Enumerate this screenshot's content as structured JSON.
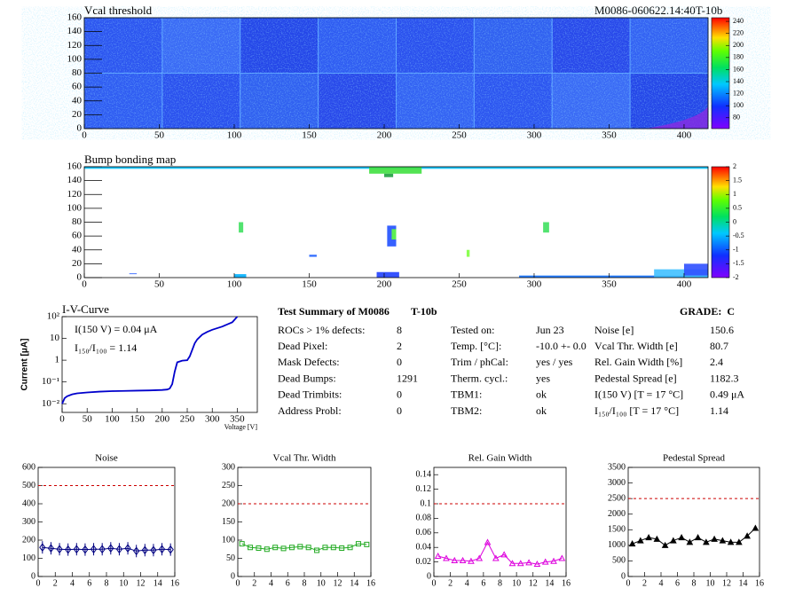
{
  "header": {
    "module_id": "M0086-060622.14:40T-10b"
  },
  "chart_data": [
    {
      "type": "heatmap",
      "title": "Vcal threshold",
      "xlim": [
        0,
        416
      ],
      "xticks": [
        0,
        50,
        100,
        150,
        200,
        250,
        300,
        350,
        400
      ],
      "ylim": [
        0,
        160
      ],
      "yticks": [
        0,
        20,
        40,
        60,
        80,
        100,
        120,
        140,
        160
      ],
      "zlim": [
        62,
        246
      ],
      "zticks": [
        80,
        100,
        120,
        140,
        160,
        180,
        200,
        220,
        240
      ]
    },
    {
      "type": "heatmap",
      "title": "Bump bonding map",
      "xlim": [
        0,
        416
      ],
      "xticks": [
        0,
        50,
        100,
        150,
        200,
        250,
        300,
        350,
        400
      ],
      "ylim": [
        0,
        160
      ],
      "yticks": [
        0,
        20,
        40,
        60,
        80,
        100,
        120,
        140,
        160
      ],
      "zlim": [
        -2,
        2
      ],
      "zticks": [
        -2,
        -1.5,
        -1,
        -0.5,
        0,
        0.5,
        1,
        1.5,
        2
      ]
    },
    {
      "type": "line",
      "title": "I-V-Curve",
      "xlabel": "Voltage [V]",
      "ylabel": "Current [μA]",
      "log_y": true,
      "color": "#0000cc",
      "annotations": [
        "I(150 V) = 0.04 μA",
        "I₁₅₀/I₁₀₀ =  1.14"
      ],
      "xlim": [
        0,
        390
      ],
      "xticks": [
        0,
        50,
        100,
        150,
        200,
        250,
        300,
        350
      ],
      "ylim": [
        0.004,
        100
      ],
      "yticks": [
        {
          "value": 0.01,
          "label": "10⁻²"
        },
        {
          "value": 0.1,
          "label": "10⁻¹"
        },
        {
          "value": 1,
          "label": "1"
        },
        {
          "value": 10,
          "label": "10"
        },
        {
          "value": 100,
          "label": "10²"
        }
      ],
      "x": [
        0,
        5,
        10,
        20,
        30,
        50,
        75,
        100,
        125,
        150,
        175,
        200,
        210,
        215,
        220,
        225,
        230,
        240,
        250,
        255,
        260,
        265,
        270,
        280,
        290,
        300,
        320,
        340,
        350
      ],
      "values": [
        0.01,
        0.018,
        0.022,
        0.027,
        0.03,
        0.033,
        0.036,
        0.038,
        0.039,
        0.04,
        0.041,
        0.043,
        0.045,
        0.05,
        0.08,
        0.3,
        0.8,
        0.95,
        1.0,
        1.5,
        3,
        6,
        9,
        15,
        20,
        25,
        35,
        55,
        100
      ]
    },
    {
      "type": "line",
      "title": "Noise",
      "color": "#000080",
      "marker": "diamond",
      "threshold": 500,
      "xlim": [
        0,
        16
      ],
      "xticks": [
        0,
        2,
        4,
        6,
        8,
        10,
        12,
        14,
        16
      ],
      "ylim": [
        0,
        600
      ],
      "yticks": [
        0,
        100,
        200,
        300,
        400,
        500,
        600
      ],
      "x": [
        0.5,
        1.5,
        2.5,
        3.5,
        4.5,
        5.5,
        6.5,
        7.5,
        8.5,
        9.5,
        10.5,
        11.5,
        12.5,
        13.5,
        14.5,
        15.5
      ],
      "values": [
        160,
        155,
        150,
        148,
        150,
        148,
        150,
        150,
        155,
        150,
        155,
        140,
        145,
        145,
        150,
        148
      ]
    },
    {
      "type": "line",
      "title": "Vcal Thr. Width",
      "color": "#22aa22",
      "marker": "square",
      "threshold": 200,
      "xlim": [
        0,
        16
      ],
      "xticks": [
        0,
        2,
        4,
        6,
        8,
        10,
        12,
        14,
        16
      ],
      "ylim": [
        0,
        300
      ],
      "yticks": [
        0,
        50,
        100,
        150,
        200,
        250,
        300
      ],
      "x": [
        0.5,
        1.5,
        2.5,
        3.5,
        4.5,
        5.5,
        6.5,
        7.5,
        8.5,
        9.5,
        10.5,
        11.5,
        12.5,
        13.5,
        14.5,
        15.5
      ],
      "values": [
        90,
        80,
        78,
        75,
        80,
        77,
        80,
        82,
        80,
        72,
        80,
        80,
        78,
        80,
        90,
        88
      ]
    },
    {
      "type": "line",
      "title": "Rel. Gain Width",
      "color": "#dd00dd",
      "marker": "triangle",
      "threshold": 0.1,
      "xlim": [
        0,
        16
      ],
      "xticks": [
        0,
        2,
        4,
        6,
        8,
        10,
        12,
        14,
        16
      ],
      "ylim": [
        0,
        0.15
      ],
      "yticks": [
        0,
        0.02,
        0.04,
        0.06,
        0.08,
        0.1,
        0.12,
        0.14
      ],
      "x": [
        0.5,
        1.5,
        2.5,
        3.5,
        4.5,
        5.5,
        6.5,
        7.5,
        8.5,
        9.5,
        10.5,
        11.5,
        12.5,
        13.5,
        14.5,
        15.5
      ],
      "values": [
        0.028,
        0.025,
        0.022,
        0.022,
        0.021,
        0.025,
        0.047,
        0.025,
        0.03,
        0.018,
        0.018,
        0.019,
        0.017,
        0.02,
        0.021,
        0.025
      ]
    },
    {
      "type": "line",
      "title": "Pedestal Spread",
      "color": "#000000",
      "marker": "triangle",
      "threshold": 2500,
      "xlim": [
        0,
        16
      ],
      "xticks": [
        0,
        2,
        4,
        6,
        8,
        10,
        12,
        14,
        16
      ],
      "ylim": [
        0,
        3500
      ],
      "yticks": [
        0,
        500,
        1000,
        1500,
        2000,
        2500,
        3000,
        3500
      ],
      "x": [
        0.5,
        1.5,
        2.5,
        3.5,
        4.5,
        5.5,
        6.5,
        7.5,
        8.5,
        9.5,
        10.5,
        11.5,
        12.5,
        13.5,
        14.5,
        15.5
      ],
      "values": [
        1050,
        1150,
        1250,
        1200,
        1000,
        1150,
        1250,
        1100,
        1250,
        1100,
        1200,
        1150,
        1100,
        1100,
        1300,
        1550
      ]
    }
  ],
  "summary": {
    "title": "Test Summary of M0086",
    "tag": "T-10b",
    "grade": "GRADE:  C",
    "columns": [
      [
        [
          "ROCs > 1% defects:",
          "8"
        ],
        [
          "Dead Pixel:",
          "2"
        ],
        [
          "Mask Defects:",
          "0"
        ],
        [
          "Dead Bumps:",
          "1291"
        ],
        [
          "Dead Trimbits:",
          "0"
        ],
        [
          "Address Probl:",
          "0"
        ]
      ],
      [
        [
          "Tested on:",
          "Jun 23"
        ],
        [
          "Temp. [°C]:",
          "-10.0 +- 0.0"
        ],
        [
          "Trim / phCal:",
          "yes / yes"
        ],
        [
          "Therm. cycl.:",
          "yes"
        ],
        [
          "TBM1:",
          "ok"
        ],
        [
          "TBM2:",
          "ok"
        ]
      ],
      [
        [
          "Noise [e]",
          "150.6"
        ],
        [
          "Vcal Thr. Width [e]",
          "80.7"
        ],
        [
          "Rel. Gain Width [%]",
          "2.4"
        ],
        [
          "Pedestal Spread [e]",
          "1182.3"
        ],
        [
          "I(150 V) [T = 17 °C]",
          "0.49 μA"
        ],
        [
          "I₁₅₀/I₁₀₀ [T = 17 °C]",
          "1.14"
        ]
      ]
    ]
  }
}
